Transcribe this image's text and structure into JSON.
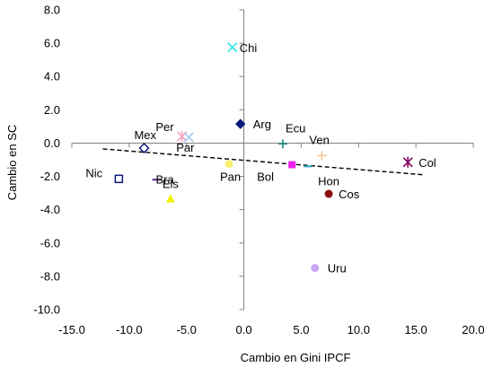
{
  "chart_data": {
    "type": "scatter",
    "title": "",
    "xlabel": "Cambio en Gini IPCF",
    "ylabel": "Cambio en SC",
    "xlim": [
      -15.0,
      20.0
    ],
    "ylim": [
      -10.0,
      8.0
    ],
    "x_ticks": [
      "-15.0",
      "-10.0",
      "-5.0",
      "0.0",
      "5.0",
      "10.0",
      "15.0",
      "20.0"
    ],
    "y_ticks": [
      "8.0",
      "6.0",
      "4.0",
      "2.0",
      "0.0",
      "-2.0",
      "-4.0",
      "-6.0",
      "-8.0",
      "-10.0"
    ],
    "grid": false,
    "legend": "none",
    "trendline": {
      "style": "dashed",
      "x1": -12.3,
      "y1": -0.35,
      "x2": 15.6,
      "y2": -1.9
    },
    "points": [
      {
        "label": "Chi",
        "x": -1.0,
        "y": 5.75,
        "marker": "x",
        "color": "#33e6e6"
      },
      {
        "label": "Arg",
        "x": -0.3,
        "y": 1.15,
        "marker": "diamond",
        "color": "#0a1a7a"
      },
      {
        "label": "Ecu",
        "x": 3.4,
        "y": -0.05,
        "marker": "plus",
        "color": "#1a8a8a"
      },
      {
        "label": "Per",
        "x": -5.4,
        "y": 0.4,
        "marker": "star",
        "color": "#f5a0c0"
      },
      {
        "label": "Par",
        "x": -4.8,
        "y": 0.35,
        "marker": "x",
        "color": "#99ccee"
      },
      {
        "label": "Mex",
        "x": -8.7,
        "y": -0.3,
        "marker": "diamond-open",
        "color": "#0a1a7a"
      },
      {
        "label": "Ven",
        "x": 6.8,
        "y": -0.75,
        "marker": "plus",
        "color": "#f5c890"
      },
      {
        "label": "Col",
        "x": 14.3,
        "y": -1.15,
        "marker": "star",
        "color": "#800060"
      },
      {
        "label": "Pan",
        "x": -1.3,
        "y": -1.25,
        "marker": "circle",
        "color": "#f5f070"
      },
      {
        "label": "Bol",
        "x": 4.2,
        "y": -1.3,
        "marker": "square",
        "color": "#ee22ee"
      },
      {
        "label": "Hon",
        "x": 5.6,
        "y": -1.4,
        "marker": "dash",
        "color": "#33aacc"
      },
      {
        "label": "Nic",
        "x": -10.9,
        "y": -2.15,
        "marker": "square-open",
        "color": "#0a1a7a"
      },
      {
        "label": "Bra",
        "x": -7.6,
        "y": -2.2,
        "marker": "dash",
        "color": "#5a2a90"
      },
      {
        "label": "Els",
        "x": -6.4,
        "y": -3.35,
        "marker": "triangle",
        "color": "#f0f000"
      },
      {
        "label": "Cos",
        "x": 7.4,
        "y": -3.05,
        "marker": "circle",
        "color": "#8a1010"
      },
      {
        "label": "Uru",
        "x": 6.2,
        "y": -7.5,
        "marker": "circle",
        "color": "#c8a8f5"
      }
    ]
  }
}
